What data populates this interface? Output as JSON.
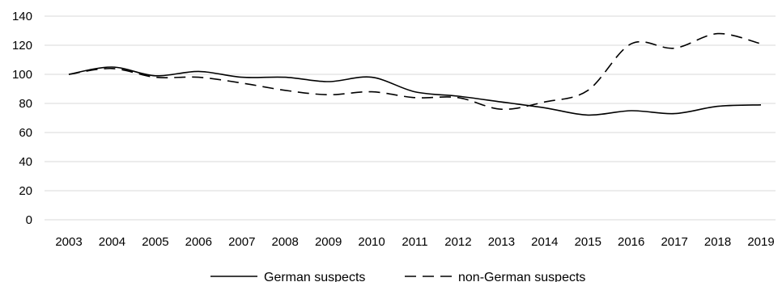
{
  "chart_data": {
    "type": "line",
    "title": "",
    "xlabel": "",
    "ylabel": "",
    "x": [
      "2003",
      "2004",
      "2005",
      "2006",
      "2007",
      "2008",
      "2009",
      "2010",
      "2011",
      "2012",
      "2013",
      "2014",
      "2015",
      "2016",
      "2017",
      "2018",
      "2019"
    ],
    "ylim": [
      0,
      140
    ],
    "yticks": [
      "0",
      "20",
      "40",
      "60",
      "80",
      "100",
      "120",
      "140"
    ],
    "grid": true,
    "legend_position": "bottom",
    "series": [
      {
        "name": "German suspects",
        "style": "solid",
        "color": "#000000",
        "values": [
          100,
          105,
          99,
          102,
          98,
          98,
          95,
          98,
          88,
          85,
          81,
          77,
          72,
          75,
          73,
          78,
          79
        ]
      },
      {
        "name": "non-German suspects",
        "style": "dashed",
        "color": "#000000",
        "values": [
          100,
          104,
          98,
          98,
          94,
          89,
          86,
          88,
          84,
          84,
          76,
          81,
          89,
          121,
          118,
          128,
          121
        ]
      }
    ]
  }
}
